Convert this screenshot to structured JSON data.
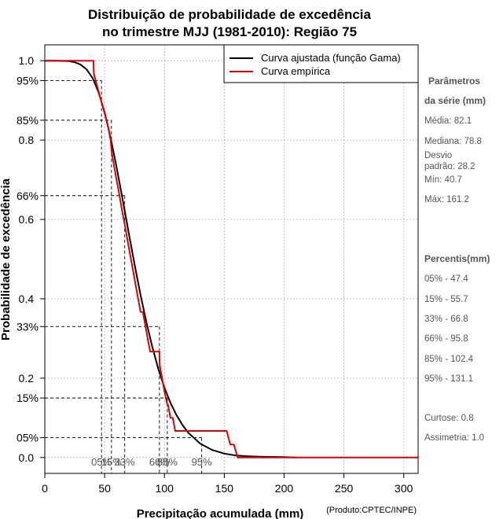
{
  "chart_data": {
    "type": "line",
    "title_line1": "Distribuição de probabilidade de excedência",
    "title_line2": "no trimestre MJJ (1981-2010): Região 75",
    "xlabel": "Precipitação acumulada (mm)",
    "ylabel": "Probabilidade de excedência",
    "credit": "(Produto:CPTEC/INPE)",
    "xlim": [
      0,
      312
    ],
    "ylim": [
      -0.04,
      1.04
    ],
    "x_ticks": [
      0,
      50,
      100,
      150,
      200,
      250,
      300
    ],
    "y_ticks": [
      0.0,
      0.2,
      0.4,
      0.6,
      0.8,
      1.0
    ],
    "y_tick_labels": [
      "0.0",
      "0.2",
      "0.4",
      "0.6",
      "0.8",
      "1.0"
    ],
    "grid": true,
    "legend_position": "top-right",
    "legend": [
      {
        "name": "Curva ajustada (função Gama)",
        "color": "#000000"
      },
      {
        "name": "Curva empírica",
        "color": "#e00000"
      }
    ],
    "series": [
      {
        "name": "Curva ajustada (função Gama)",
        "color": "#000000",
        "x": [
          0,
          10,
          20,
          25,
          30,
          35,
          40,
          45,
          50,
          55,
          60,
          65,
          70,
          75,
          80,
          85,
          90,
          95,
          100,
          105,
          110,
          115,
          120,
          130,
          140,
          150,
          160,
          170,
          180,
          200,
          210
        ],
        "y": [
          1.0,
          1.0,
          0.999,
          0.996,
          0.99,
          0.978,
          0.956,
          0.92,
          0.87,
          0.806,
          0.732,
          0.651,
          0.568,
          0.487,
          0.41,
          0.34,
          0.277,
          0.222,
          0.176,
          0.138,
          0.107,
          0.082,
          0.062,
          0.035,
          0.019,
          0.01,
          0.005,
          0.003,
          0.002,
          0.001,
          0.0
        ]
      },
      {
        "name": "Curva empírica",
        "color": "#e00000",
        "x": [
          0,
          40.7,
          41,
          44,
          47,
          50,
          53,
          55,
          56,
          58,
          60,
          62,
          64,
          66,
          68,
          70,
          72,
          74,
          76,
          78,
          80,
          82,
          84,
          86,
          88,
          95.8,
          96,
          98,
          100,
          102.4,
          103,
          105,
          107,
          109,
          111,
          113,
          131,
          140,
          150,
          152,
          155,
          158,
          161.2,
          312
        ],
        "y": [
          1.0,
          1.0,
          0.967,
          0.933,
          0.9,
          0.867,
          0.833,
          0.8,
          0.767,
          0.733,
          0.7,
          0.667,
          0.633,
          0.6,
          0.567,
          0.533,
          0.5,
          0.467,
          0.433,
          0.4,
          0.367,
          0.367,
          0.333,
          0.3,
          0.267,
          0.267,
          0.233,
          0.2,
          0.167,
          0.133,
          0.133,
          0.1,
          0.1,
          0.067,
          0.067,
          0.067,
          0.067,
          0.067,
          0.067,
          0.067,
          0.033,
          0.033,
          0.0,
          0.0
        ]
      }
    ],
    "percentile_markers": [
      {
        "label": "05%",
        "y": 0.05,
        "x": 131.1
      },
      {
        "label": "15%",
        "y": 0.15,
        "x": 102.4
      },
      {
        "label": "33%",
        "y": 0.33,
        "x": 95.8
      },
      {
        "label": "66%",
        "y": 0.66,
        "x": 66.8
      },
      {
        "label": "85%",
        "y": 0.85,
        "x": 55.7
      },
      {
        "label": "95%",
        "y": 0.95,
        "x": 47.4
      }
    ],
    "x_percentile_labels": [
      {
        "label": "05%",
        "x": 47.4
      },
      {
        "label": "15%",
        "x": 55.7
      },
      {
        "label": "33%",
        "x": 66.8
      },
      {
        "label": "66%",
        "x": 95.8
      },
      {
        "label": "85%",
        "x": 102.4
      },
      {
        "label": "95%",
        "x": 131.1
      }
    ]
  },
  "side_panel": {
    "params_title_1": "Parâmetros",
    "params_title_2": "da série (mm)",
    "media": "Média: 82.1",
    "mediana": "Mediana: 78.8",
    "desvio_1": "Desvio",
    "desvio_2": "padrão: 28.2",
    "min": "Mín: 40.7",
    "max": "Máx: 161.2",
    "percentis_title": "Percentis(mm)",
    "p05": "05% - 47.4",
    "p15": "15% - 55.7",
    "p33": "33% - 66.8",
    "p66": "66% - 95.8",
    "p85": "85% - 102.4",
    "p95": "95% - 131.1",
    "curtose": "Curtose: 0.8",
    "assimetria": "Assimetria: 1.0"
  }
}
